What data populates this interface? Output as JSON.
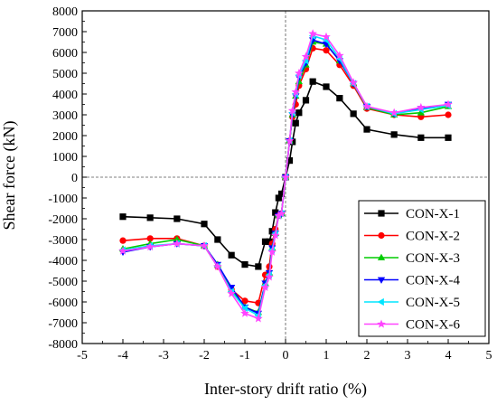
{
  "chart_data": {
    "type": "line",
    "xlabel": "Inter-story drift ratio (%)",
    "ylabel": "Shear force (kN)",
    "xlim": [
      -5,
      5
    ],
    "ylim": [
      -8000,
      8000
    ],
    "xticks": [
      -5,
      -4,
      -3,
      -2,
      -1,
      0,
      1,
      2,
      3,
      4,
      5
    ],
    "yticks": [
      -8000,
      -7000,
      -6000,
      -5000,
      -4000,
      -3000,
      -2000,
      -1000,
      0,
      1000,
      2000,
      3000,
      4000,
      5000,
      6000,
      7000,
      8000
    ],
    "grid": false,
    "zero_lines": true,
    "legend_position": "bottom-right",
    "x": [
      -4.0,
      -3.33,
      -2.67,
      -2.0,
      -1.67,
      -1.33,
      -1.0,
      -0.67,
      -0.5,
      -0.4,
      -0.33,
      -0.25,
      -0.17,
      -0.1,
      0.0,
      0.1,
      0.17,
      0.25,
      0.33,
      0.5,
      0.67,
      1.0,
      1.33,
      1.67,
      2.0,
      2.67,
      3.33,
      4.0
    ],
    "series": [
      {
        "name": "CON-X-1",
        "color": "#000000",
        "marker": "square",
        "values": [
          -1900,
          -1950,
          -2000,
          -2250,
          -3000,
          -3750,
          -4200,
          -4300,
          -3100,
          -3100,
          -2600,
          -1700,
          -1000,
          -800,
          0,
          800,
          1700,
          2600,
          3100,
          3700,
          4600,
          4350,
          3800,
          3050,
          2300,
          2050,
          1900,
          1900
        ]
      },
      {
        "name": "CON-X-2",
        "color": "#ff0000",
        "marker": "circle",
        "values": [
          -3050,
          -2950,
          -2950,
          -3300,
          -4300,
          -5400,
          -5950,
          -6050,
          -4700,
          -4300,
          -3200,
          -2500,
          -1850,
          -1750,
          0,
          1750,
          2900,
          3500,
          4400,
          5200,
          6200,
          6100,
          5400,
          4400,
          3300,
          3000,
          2900,
          3000
        ]
      },
      {
        "name": "CON-X-3",
        "color": "#00cc00",
        "marker": "triangle-up",
        "values": [
          -3450,
          -3200,
          -3000,
          -3300,
          -4200,
          -5400,
          -6250,
          -6500,
          -5100,
          -4600,
          -3400,
          -2700,
          -1850,
          -1750,
          0,
          1750,
          3000,
          3900,
          4600,
          5400,
          6500,
          6400,
          5600,
          4500,
          3350,
          3000,
          3100,
          3400
        ]
      },
      {
        "name": "CON-X-4",
        "color": "#0000ff",
        "marker": "triangle-down",
        "values": [
          -3600,
          -3350,
          -3200,
          -3300,
          -4200,
          -5300,
          -6250,
          -6550,
          -5100,
          -4600,
          -3400,
          -2700,
          -1850,
          -1750,
          0,
          1750,
          3000,
          3900,
          4800,
          5500,
          6600,
          6400,
          5600,
          4500,
          3400,
          3050,
          3300,
          3500
        ]
      },
      {
        "name": "CON-X-5",
        "color": "#00e5ff",
        "marker": "triangle-left",
        "values": [
          -3500,
          -3300,
          -3200,
          -3300,
          -4300,
          -5500,
          -6300,
          -6650,
          -5200,
          -4700,
          -3500,
          -2700,
          -1850,
          -1750,
          0,
          1750,
          3100,
          4000,
          4900,
          5600,
          6800,
          6600,
          5700,
          4500,
          3400,
          3050,
          3250,
          3450
        ]
      },
      {
        "name": "CON-X-6",
        "color": "#ff44ff",
        "marker": "star",
        "values": [
          -3550,
          -3350,
          -3200,
          -3300,
          -4300,
          -5600,
          -6550,
          -6800,
          -5300,
          -4800,
          -3600,
          -2800,
          -1850,
          -1750,
          0,
          1750,
          3200,
          4100,
          5000,
          5800,
          6900,
          6750,
          5850,
          4550,
          3400,
          3100,
          3350,
          3500
        ]
      }
    ]
  }
}
